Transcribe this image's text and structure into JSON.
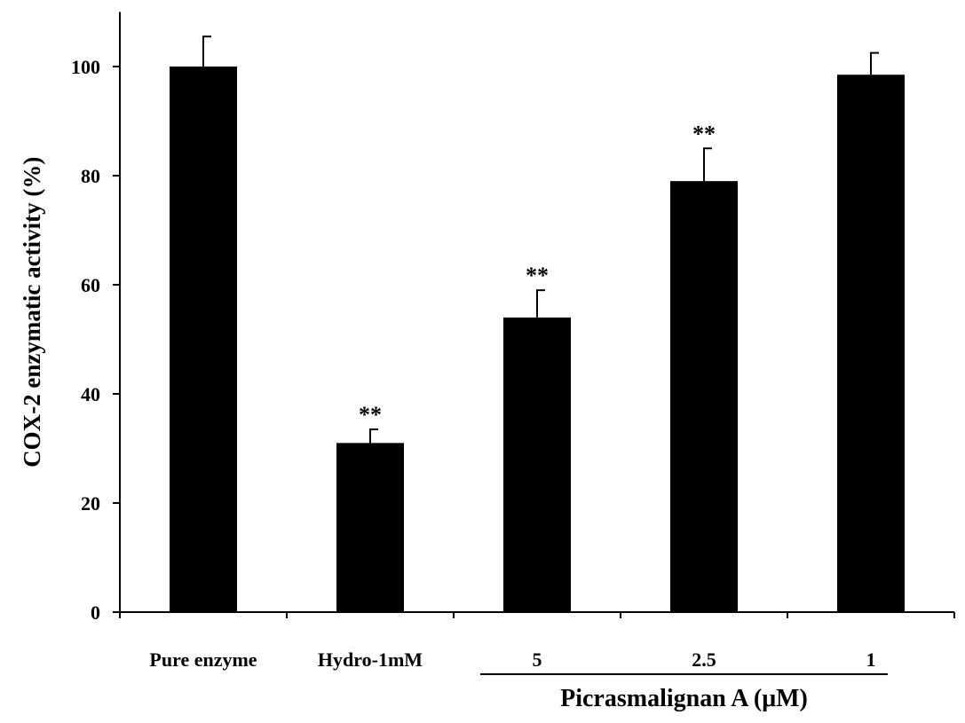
{
  "chart_data": {
    "type": "bar",
    "title": "",
    "xlabel": "",
    "ylabel": "COX-2 enzymatic activity (%)",
    "ylim": [
      0,
      110
    ],
    "yticks": [
      0,
      20,
      40,
      60,
      80,
      100
    ],
    "ytick_labels": [
      "0",
      "20",
      "40",
      "60",
      "80",
      "100"
    ],
    "categories": [
      "Pure enzyme",
      "Hydro-1mM",
      "5",
      "2.5",
      "1"
    ],
    "values": [
      100,
      31,
      54,
      79,
      98.5
    ],
    "errors": [
      5.5,
      2.5,
      5,
      6,
      4
    ],
    "significance": [
      "",
      "**",
      "**",
      "**",
      ""
    ],
    "group_label": "Picrasmalignan A (μM)",
    "grid": false,
    "bar_color": "#000000"
  }
}
